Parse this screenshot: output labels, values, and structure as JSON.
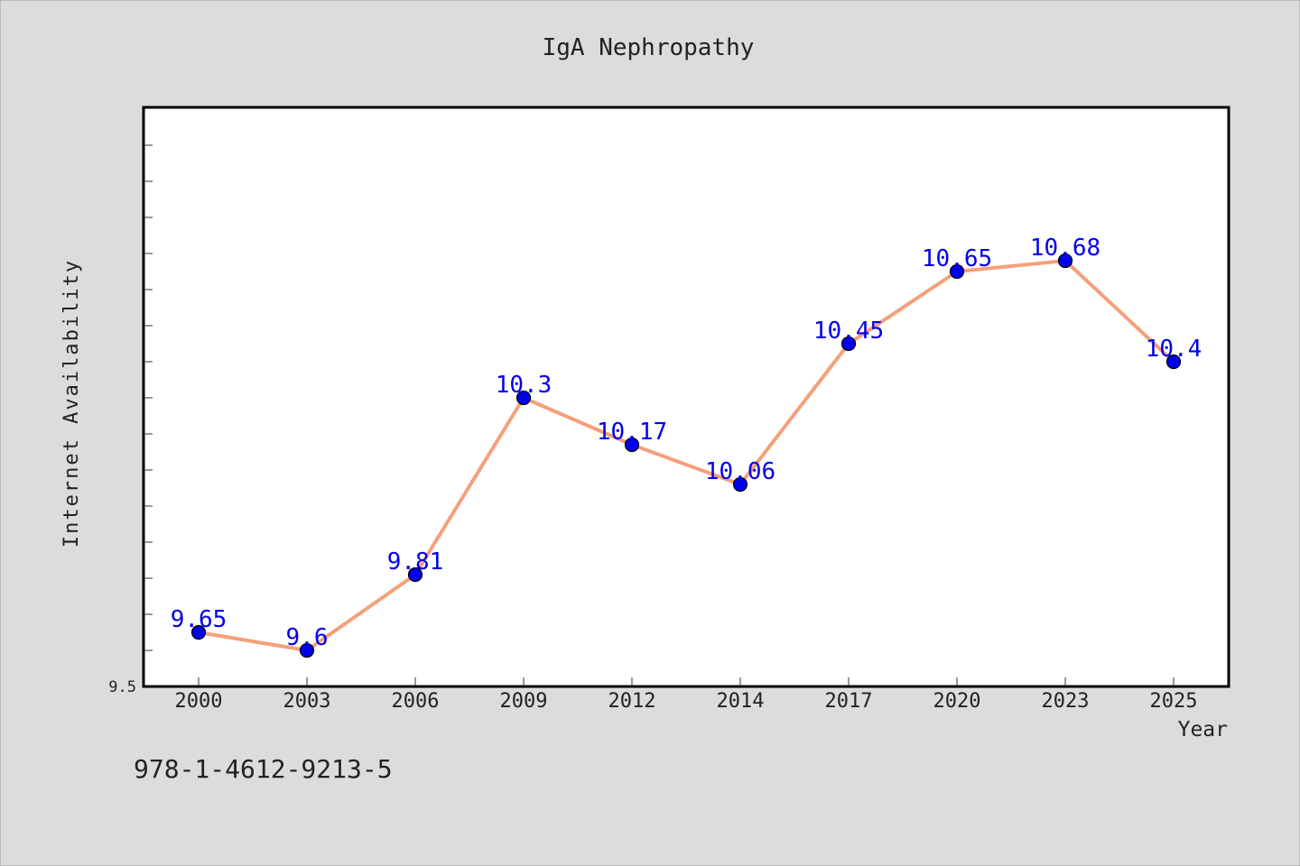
{
  "chart_data": {
    "type": "line",
    "title": "IgA Nephropathy",
    "xlabel": "Year",
    "ylabel": "Internet Availability",
    "x": [
      "2000",
      "2003",
      "2006",
      "2009",
      "2012",
      "2014",
      "2017",
      "2020",
      "2023",
      "2025"
    ],
    "series": [
      {
        "values": [
          9.65,
          9.6,
          9.81,
          10.3,
          10.17,
          10.06,
          10.45,
          10.65,
          10.68,
          10.4
        ],
        "data_labels": [
          "9.65",
          "9.6",
          "9.81",
          "10.3",
          "10.17",
          "10.06",
          "10.45",
          "10.65",
          "10.68",
          "10.4"
        ]
      }
    ],
    "ylim": [
      9.5,
      11.0
    ],
    "y_tick_labels": [
      "9.5"
    ],
    "grid": false,
    "legend": "none",
    "colors": {
      "background": "#dcdcdc",
      "plot_background": "#ffffff",
      "line": "#f4a07a",
      "marker": "#0000ee",
      "data_label": "#0000ee",
      "text": "#222222"
    }
  },
  "footer_text": "978-1-4612-9213-5"
}
